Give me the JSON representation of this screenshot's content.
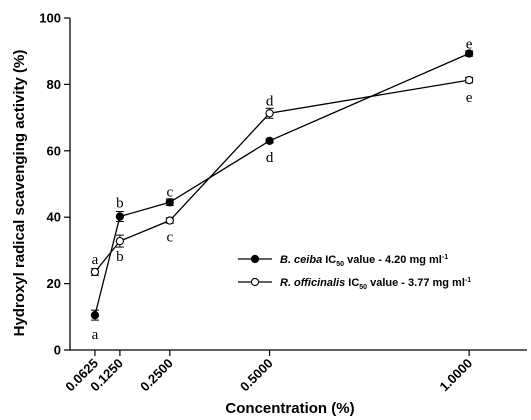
{
  "chart_data": {
    "type": "line",
    "xlabel": "Concentration (%)",
    "ylabel": "Hydroxyl radical scavenging activity (%)",
    "ylim": [
      0,
      100
    ],
    "y_ticks": [
      "0",
      "20",
      "40",
      "60",
      "80",
      "100"
    ],
    "x_ticks": [
      "0.0625",
      "0.1250",
      "0.2500",
      "0.5000",
      "1.0000"
    ],
    "grid": false,
    "legend_position": "center-right",
    "series": [
      {
        "name_italic": "B. ceiba",
        "name_prefix": " IC",
        "name_sub": "50",
        "name_suffix": " value - 4.20 mg ml",
        "name_sup": "-1",
        "marker": "filled-circle",
        "x": [
          0.0625,
          0.125,
          0.25,
          0.5,
          1.0
        ],
        "y": [
          10.5,
          40.2,
          44.5,
          63.0,
          89.3
        ],
        "err": [
          1.5,
          1.5,
          1.0,
          0.6,
          0.8
        ],
        "letters": [
          "a",
          "b",
          "c",
          "d",
          "e"
        ]
      },
      {
        "name_italic": "R. officinalis",
        "name_prefix": " IC",
        "name_sub": "50",
        "name_suffix": " value - 3.77 mg ml",
        "name_sup": "-1",
        "marker": "open-circle",
        "x": [
          0.0625,
          0.125,
          0.25,
          0.5,
          1.0
        ],
        "y": [
          23.5,
          32.8,
          39.0,
          71.3,
          81.3
        ],
        "err": [
          1.0,
          1.8,
          0.8,
          1.5,
          0.8
        ],
        "letters": [
          "a",
          "b",
          "c",
          "d",
          "e"
        ]
      }
    ]
  }
}
